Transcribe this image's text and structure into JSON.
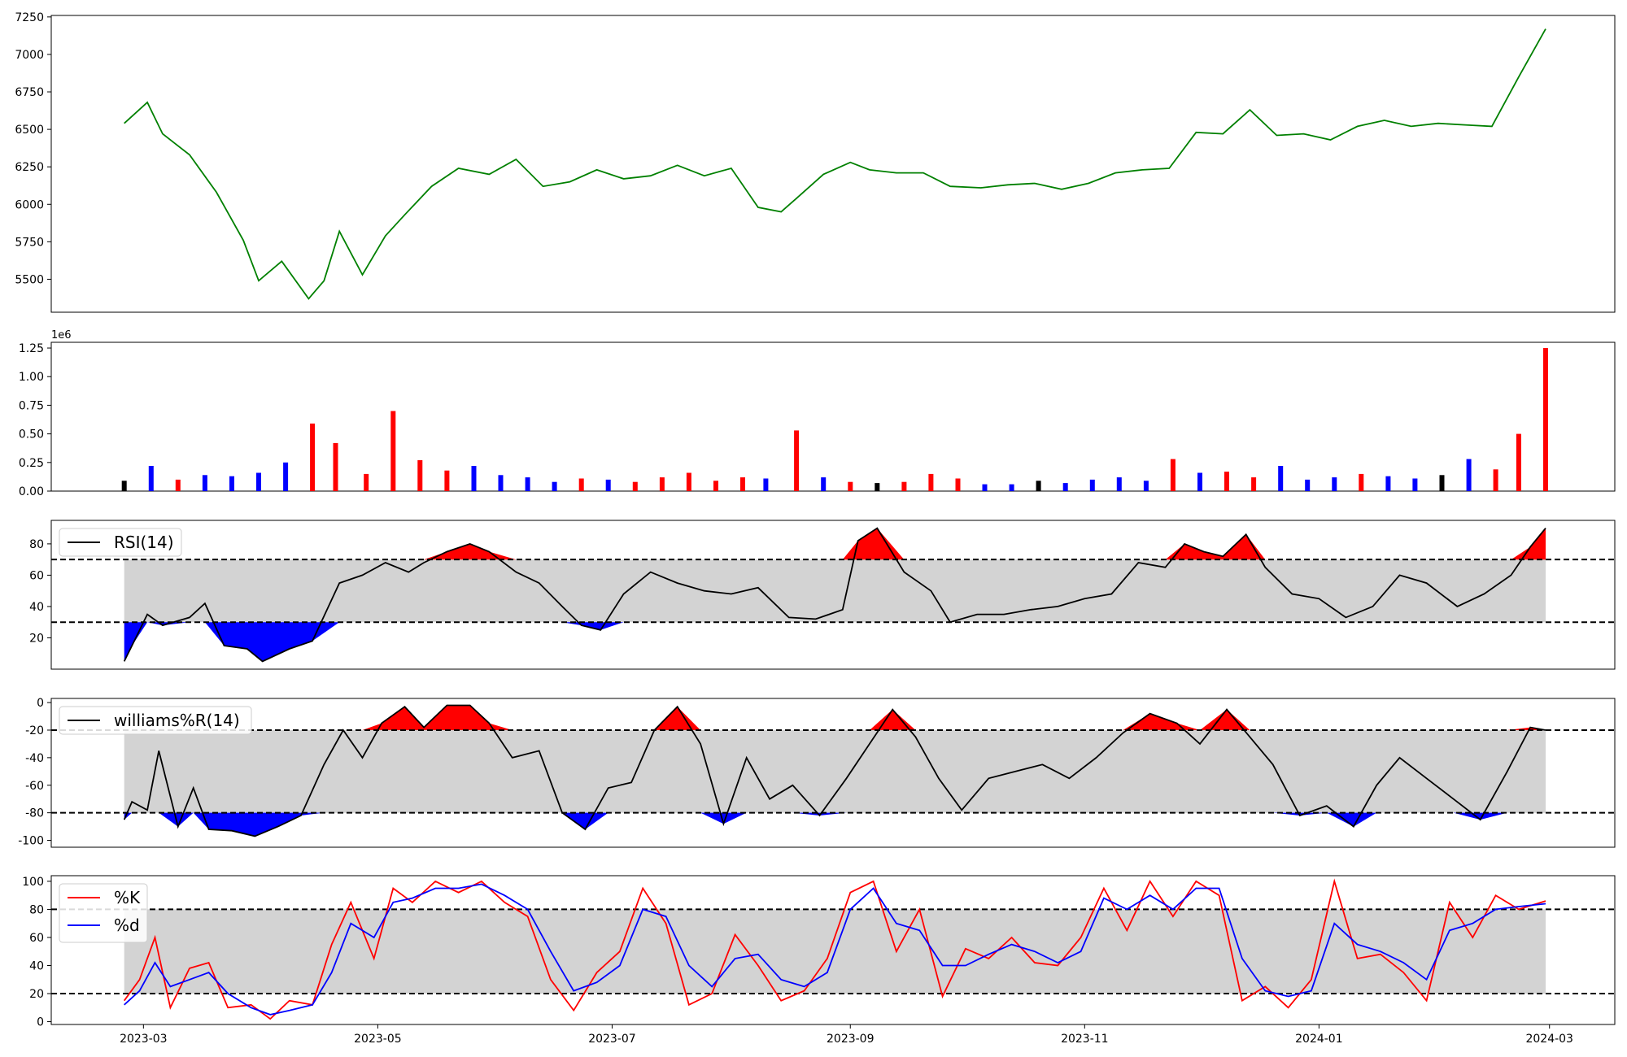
{
  "chart_data": [
    {
      "type": "line",
      "panel": "price",
      "yticks": [
        5500,
        5750,
        6000,
        6250,
        6500,
        6750,
        7000,
        7250
      ],
      "ylim": [
        5280,
        7260
      ],
      "color": "#008000",
      "grid": false,
      "series": [
        {
          "x": [
            "2023-02-24",
            "2023-03-02",
            "2023-03-06",
            "2023-03-09",
            "2023-03-13",
            "2023-03-20",
            "2023-03-27",
            "2023-03-31",
            "2023-04-06",
            "2023-04-13",
            "2023-04-17",
            "2023-04-21",
            "2023-04-27",
            "2023-05-03",
            "2023-05-08",
            "2023-05-15",
            "2023-05-22",
            "2023-05-30",
            "2023-06-06",
            "2023-06-13",
            "2023-06-20",
            "2023-06-27",
            "2023-07-04",
            "2023-07-11",
            "2023-07-18",
            "2023-07-25",
            "2023-08-01",
            "2023-08-08",
            "2023-08-14",
            "2023-08-18",
            "2023-08-25",
            "2023-09-01",
            "2023-09-06",
            "2023-09-13",
            "2023-09-20",
            "2023-09-27",
            "2023-10-05",
            "2023-10-12",
            "2023-10-19",
            "2023-10-26",
            "2023-11-02",
            "2023-11-09",
            "2023-11-16",
            "2023-11-23",
            "2023-11-30",
            "2023-12-07",
            "2023-12-14",
            "2023-12-21",
            "2023-12-28",
            "2024-01-04",
            "2024-01-11",
            "2024-01-18",
            "2024-01-25",
            "2024-02-01",
            "2024-02-08",
            "2024-02-15",
            "2024-02-22",
            "2024-02-29"
          ],
          "y": [
            6540,
            6680,
            6470,
            6410,
            6330,
            6080,
            5760,
            5490,
            5620,
            5370,
            5490,
            5820,
            5530,
            5790,
            5930,
            6120,
            6240,
            6200,
            6300,
            6120,
            6150,
            6230,
            6170,
            6190,
            6260,
            6190,
            6240,
            5980,
            5950,
            6040,
            6200,
            6280,
            6230,
            6210,
            6210,
            6120,
            6110,
            6130,
            6140,
            6100,
            6140,
            6210,
            6230,
            6240,
            6480,
            6470,
            6630,
            6460,
            6470,
            6430,
            6520,
            6560,
            6520,
            6540,
            6530,
            6520,
            6850,
            7170
          ]
        }
      ]
    },
    {
      "type": "bar",
      "panel": "volume",
      "yticks": [
        "0.00",
        "0.25",
        "0.50",
        "0.75",
        "1.00",
        "1.25"
      ],
      "ylim": [
        0,
        1.3
      ],
      "offset_label": "1e6",
      "colors": {
        "up": "#ff0000",
        "down": "#0000ff",
        "flat": "#000000"
      },
      "series": [
        {
          "x": [
            "2023-02-24",
            "2023-03-03",
            "2023-03-10",
            "2023-03-17",
            "2023-03-24",
            "2023-03-31",
            "2023-04-07",
            "2023-04-14",
            "2023-04-20",
            "2023-04-28",
            "2023-05-05",
            "2023-05-12",
            "2023-05-19",
            "2023-05-26",
            "2023-06-02",
            "2023-06-09",
            "2023-06-16",
            "2023-06-23",
            "2023-06-30",
            "2023-07-07",
            "2023-07-14",
            "2023-07-21",
            "2023-07-28",
            "2023-08-04",
            "2023-08-10",
            "2023-08-18",
            "2023-08-25",
            "2023-09-01",
            "2023-09-08",
            "2023-09-15",
            "2023-09-22",
            "2023-09-29",
            "2023-10-06",
            "2023-10-13",
            "2023-10-20",
            "2023-10-27",
            "2023-11-03",
            "2023-11-10",
            "2023-11-17",
            "2023-11-24",
            "2023-12-01",
            "2023-12-08",
            "2023-12-15",
            "2023-12-22",
            "2023-12-29",
            "2024-01-05",
            "2024-01-12",
            "2024-01-19",
            "2024-01-26",
            "2024-02-02",
            "2024-02-09",
            "2024-02-16",
            "2024-02-22",
            "2024-02-29"
          ],
          "values": [
            0.09,
            0.22,
            0.1,
            0.14,
            0.13,
            0.16,
            0.25,
            0.59,
            0.42,
            0.15,
            0.7,
            0.27,
            0.18,
            0.22,
            0.14,
            0.12,
            0.08,
            0.11,
            0.1,
            0.08,
            0.12,
            0.16,
            0.09,
            0.12,
            0.11,
            0.53,
            0.12,
            0.08,
            0.07,
            0.08,
            0.15,
            0.11,
            0.06,
            0.06,
            0.09,
            0.07,
            0.1,
            0.12,
            0.09,
            0.28,
            0.16,
            0.17,
            0.12,
            0.22,
            0.1,
            0.12,
            0.15,
            0.13,
            0.11,
            0.14,
            0.28,
            0.19,
            0.5,
            1.25
          ],
          "direction": [
            "flat",
            "down",
            "up",
            "down",
            "down",
            "down",
            "down",
            "up",
            "up",
            "up",
            "up",
            "up",
            "up",
            "down",
            "down",
            "down",
            "down",
            "up",
            "down",
            "up",
            "up",
            "up",
            "up",
            "up",
            "down",
            "up",
            "down",
            "up",
            "flat",
            "up",
            "up",
            "up",
            "down",
            "down",
            "flat",
            "down",
            "down",
            "down",
            "down",
            "up",
            "down",
            "up",
            "up",
            "down",
            "down",
            "down",
            "up",
            "down",
            "down",
            "flat",
            "down",
            "up",
            "up",
            "up"
          ]
        }
      ]
    },
    {
      "type": "line",
      "panel": "rsi",
      "yticks": [
        20,
        40,
        60,
        80
      ],
      "ylim": [
        0,
        95
      ],
      "thresholds": [
        30,
        70
      ],
      "fill_colors": {
        "above": "#ff0000",
        "below": "#0000ff",
        "band": "#d3d3d3"
      },
      "legend": {
        "label": "RSI(14)",
        "placement": "upper left"
      },
      "series": [
        {
          "name": "RSI(14)",
          "x": [
            "2023-02-24",
            "2023-02-26",
            "2023-03-02",
            "2023-03-06",
            "2023-03-13",
            "2023-03-17",
            "2023-03-22",
            "2023-03-28",
            "2023-04-01",
            "2023-04-08",
            "2023-04-14",
            "2023-04-21",
            "2023-04-27",
            "2023-05-03",
            "2023-05-09",
            "2023-05-13",
            "2023-05-19",
            "2023-05-25",
            "2023-05-30",
            "2023-06-06",
            "2023-06-12",
            "2023-06-18",
            "2023-06-23",
            "2023-06-28",
            "2023-07-04",
            "2023-07-11",
            "2023-07-18",
            "2023-07-25",
            "2023-08-01",
            "2023-08-08",
            "2023-08-16",
            "2023-08-23",
            "2023-08-30",
            "2023-09-03",
            "2023-09-08",
            "2023-09-15",
            "2023-09-22",
            "2023-09-27",
            "2023-10-04",
            "2023-10-11",
            "2023-10-18",
            "2023-10-25",
            "2023-11-01",
            "2023-11-08",
            "2023-11-15",
            "2023-11-22",
            "2023-11-27",
            "2023-12-02",
            "2023-12-07",
            "2023-12-13",
            "2023-12-18",
            "2023-12-25",
            "2024-01-01",
            "2024-01-08",
            "2024-01-15",
            "2024-01-22",
            "2024-01-29",
            "2024-02-06",
            "2024-02-13",
            "2024-02-20",
            "2024-02-25",
            "2024-02-29"
          ],
          "y": [
            5,
            15,
            35,
            28,
            33,
            42,
            15,
            13,
            5,
            13,
            18,
            55,
            60,
            68,
            62,
            68,
            75,
            80,
            75,
            62,
            55,
            40,
            28,
            25,
            48,
            62,
            55,
            50,
            48,
            52,
            33,
            32,
            38,
            82,
            90,
            62,
            50,
            30,
            35,
            35,
            38,
            40,
            45,
            48,
            68,
            65,
            80,
            75,
            72,
            86,
            65,
            48,
            45,
            33,
            40,
            60,
            55,
            40,
            48,
            60,
            78,
            90
          ]
        }
      ]
    },
    {
      "type": "line",
      "panel": "williams",
      "yticks": [
        -100,
        -80,
        -60,
        -40,
        -20,
        0
      ],
      "ylim": [
        -105,
        3
      ],
      "thresholds": [
        -80,
        -20
      ],
      "fill_colors": {
        "above": "#ff0000",
        "below": "#0000ff",
        "band": "#d3d3d3"
      },
      "legend": {
        "label": "williams%R(14)",
        "placement": "upper left"
      },
      "series": [
        {
          "name": "williams%R(14)",
          "x": [
            "2023-02-24",
            "2023-02-26",
            "2023-03-02",
            "2023-03-05",
            "2023-03-10",
            "2023-03-14",
            "2023-03-18",
            "2023-03-24",
            "2023-03-30",
            "2023-04-05",
            "2023-04-11",
            "2023-04-17",
            "2023-04-22",
            "2023-04-27",
            "2023-05-02",
            "2023-05-08",
            "2023-05-13",
            "2023-05-19",
            "2023-05-25",
            "2023-05-30",
            "2023-06-05",
            "2023-06-12",
            "2023-06-18",
            "2023-06-24",
            "2023-06-30",
            "2023-07-06",
            "2023-07-12",
            "2023-07-18",
            "2023-07-24",
            "2023-07-30",
            "2023-08-05",
            "2023-08-11",
            "2023-08-17",
            "2023-08-24",
            "2023-08-31",
            "2023-09-06",
            "2023-09-12",
            "2023-09-18",
            "2023-09-24",
            "2023-09-30",
            "2023-10-07",
            "2023-10-14",
            "2023-10-21",
            "2023-10-28",
            "2023-11-04",
            "2023-11-11",
            "2023-11-18",
            "2023-11-25",
            "2023-12-01",
            "2023-12-08",
            "2023-12-14",
            "2023-12-20",
            "2023-12-27",
            "2024-01-03",
            "2024-01-10",
            "2024-01-16",
            "2024-01-22",
            "2024-01-29",
            "2024-02-05",
            "2024-02-12",
            "2024-02-19",
            "2024-02-25",
            "2024-02-29"
          ],
          "y": [
            -85,
            -72,
            -78,
            -35,
            -90,
            -62,
            -92,
            -93,
            -97,
            -90,
            -82,
            -45,
            -20,
            -40,
            -15,
            -3,
            -18,
            -2,
            -2,
            -15,
            -40,
            -35,
            -80,
            -92,
            -62,
            -58,
            -20,
            -3,
            -30,
            -88,
            -40,
            -70,
            -60,
            -82,
            -55,
            -30,
            -5,
            -25,
            -55,
            -78,
            -55,
            -50,
            -45,
            -55,
            -40,
            -22,
            -8,
            -15,
            -30,
            -5,
            -25,
            -45,
            -82,
            -75,
            -90,
            -60,
            -40,
            -55,
            -70,
            -85,
            -50,
            -18,
            -20
          ]
        }
      ]
    },
    {
      "type": "line",
      "panel": "stochastic",
      "yticks": [
        0,
        20,
        40,
        60,
        80,
        100
      ],
      "ylim": [
        -2,
        104
      ],
      "thresholds": [
        20,
        80
      ],
      "fill_colors": {
        "band": "#d3d3d3"
      },
      "legend": {
        "placement": "upper left"
      },
      "xtick_labels": [
        "2023-03",
        "2023-05",
        "2023-07",
        "2023-09",
        "2023-11",
        "2024-01",
        "2024-03"
      ],
      "xlim": [
        "2023-02-05",
        "2024-03-18"
      ],
      "series": [
        {
          "name": "%K",
          "color": "#ff0000",
          "x": [
            "2023-02-24",
            "2023-02-28",
            "2023-03-04",
            "2023-03-08",
            "2023-03-13",
            "2023-03-18",
            "2023-03-23",
            "2023-03-29",
            "2023-04-03",
            "2023-04-08",
            "2023-04-14",
            "2023-04-19",
            "2023-04-24",
            "2023-04-30",
            "2023-05-05",
            "2023-05-10",
            "2023-05-16",
            "2023-05-22",
            "2023-05-28",
            "2023-06-03",
            "2023-06-09",
            "2023-06-15",
            "2023-06-21",
            "2023-06-27",
            "2023-07-03",
            "2023-07-09",
            "2023-07-15",
            "2023-07-21",
            "2023-07-27",
            "2023-08-02",
            "2023-08-08",
            "2023-08-14",
            "2023-08-20",
            "2023-08-26",
            "2023-09-01",
            "2023-09-07",
            "2023-09-13",
            "2023-09-19",
            "2023-09-25",
            "2023-10-01",
            "2023-10-07",
            "2023-10-13",
            "2023-10-19",
            "2023-10-25",
            "2023-10-31",
            "2023-11-06",
            "2023-11-12",
            "2023-11-18",
            "2023-11-24",
            "2023-11-30",
            "2023-12-06",
            "2023-12-12",
            "2023-12-18",
            "2023-12-24",
            "2023-12-30",
            "2024-01-05",
            "2024-01-11",
            "2024-01-17",
            "2024-01-23",
            "2024-01-29",
            "2024-02-04",
            "2024-02-10",
            "2024-02-16",
            "2024-02-22",
            "2024-02-29"
          ],
          "y": [
            15,
            30,
            60,
            10,
            38,
            42,
            10,
            12,
            2,
            15,
            12,
            55,
            85,
            45,
            95,
            85,
            100,
            92,
            100,
            85,
            75,
            30,
            8,
            35,
            50,
            95,
            70,
            12,
            20,
            62,
            40,
            15,
            22,
            45,
            92,
            100,
            50,
            80,
            18,
            52,
            45,
            60,
            42,
            40,
            60,
            95,
            65,
            100,
            75,
            100,
            90,
            15,
            25,
            10,
            30,
            100,
            45,
            48,
            35,
            15,
            85,
            60,
            90,
            80,
            86
          ]
        },
        {
          "name": "%d",
          "color": "#0000ff",
          "x": [
            "2023-02-24",
            "2023-02-28",
            "2023-03-04",
            "2023-03-08",
            "2023-03-13",
            "2023-03-18",
            "2023-03-23",
            "2023-03-29",
            "2023-04-03",
            "2023-04-08",
            "2023-04-14",
            "2023-04-19",
            "2023-04-24",
            "2023-04-30",
            "2023-05-05",
            "2023-05-10",
            "2023-05-16",
            "2023-05-22",
            "2023-05-28",
            "2023-06-03",
            "2023-06-09",
            "2023-06-15",
            "2023-06-21",
            "2023-06-27",
            "2023-07-03",
            "2023-07-09",
            "2023-07-15",
            "2023-07-21",
            "2023-07-27",
            "2023-08-02",
            "2023-08-08",
            "2023-08-14",
            "2023-08-20",
            "2023-08-26",
            "2023-09-01",
            "2023-09-07",
            "2023-09-13",
            "2023-09-19",
            "2023-09-25",
            "2023-10-01",
            "2023-10-07",
            "2023-10-13",
            "2023-10-19",
            "2023-10-25",
            "2023-10-31",
            "2023-11-06",
            "2023-11-12",
            "2023-11-18",
            "2023-11-24",
            "2023-11-30",
            "2023-12-06",
            "2023-12-12",
            "2023-12-18",
            "2023-12-24",
            "2023-12-30",
            "2024-01-05",
            "2024-01-11",
            "2024-01-17",
            "2024-01-23",
            "2024-01-29",
            "2024-02-04",
            "2024-02-10",
            "2024-02-16",
            "2024-02-22",
            "2024-02-29"
          ],
          "y": [
            12,
            22,
            42,
            25,
            30,
            35,
            20,
            10,
            5,
            8,
            12,
            35,
            70,
            60,
            85,
            88,
            95,
            95,
            98,
            90,
            80,
            50,
            22,
            28,
            40,
            80,
            75,
            40,
            25,
            45,
            48,
            30,
            25,
            35,
            80,
            95,
            70,
            65,
            40,
            40,
            48,
            55,
            50,
            42,
            50,
            88,
            80,
            90,
            80,
            95,
            95,
            45,
            22,
            18,
            22,
            70,
            55,
            50,
            42,
            30,
            65,
            70,
            80,
            82,
            84
          ]
        }
      ]
    }
  ]
}
